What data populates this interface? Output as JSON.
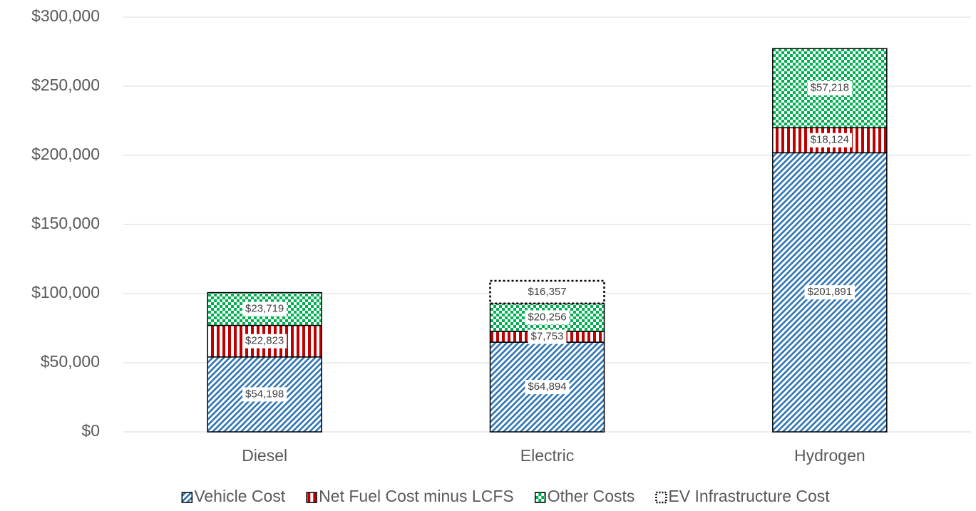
{
  "chart_data": {
    "type": "stacked_bar",
    "categories": [
      "Diesel",
      "Electric",
      "Hydrogen"
    ],
    "series": [
      {
        "name": "Vehicle Cost",
        "color": "#2e75b6",
        "pattern": "diagonal",
        "values": [
          54198,
          64894,
          201891
        ],
        "value_labels": [
          "$54,198",
          "$64,894",
          "$201,891"
        ]
      },
      {
        "name": "Net Fuel Cost minus LCFS",
        "color": "#c00000",
        "pattern": "vertical",
        "values": [
          22823,
          7753,
          18124
        ],
        "value_labels": [
          "$22,823",
          "$7,753",
          "$18,124"
        ]
      },
      {
        "name": "Other Costs",
        "color": "#00b050",
        "pattern": "checker",
        "values": [
          23719,
          20256,
          57218
        ],
        "value_labels": [
          "$23,719",
          "$20,256",
          "$57,218"
        ]
      },
      {
        "name": "EV Infrastructure Cost",
        "color": "#000000",
        "pattern": "dotted",
        "values": [
          null,
          16357,
          null
        ],
        "value_labels": [
          null,
          "$16,357",
          null
        ]
      }
    ],
    "ylim": [
      0,
      300000
    ],
    "yticks": [
      {
        "value": 0,
        "label": "$0"
      },
      {
        "value": 50000,
        "label": "$50,000"
      },
      {
        "value": 100000,
        "label": "$100,000"
      },
      {
        "value": 150000,
        "label": "$150,000"
      },
      {
        "value": 200000,
        "label": "$200,000"
      },
      {
        "value": 250000,
        "label": "$250,000"
      },
      {
        "value": 300000,
        "label": "$300,000"
      }
    ],
    "grid": true,
    "legend": "bottom"
  }
}
